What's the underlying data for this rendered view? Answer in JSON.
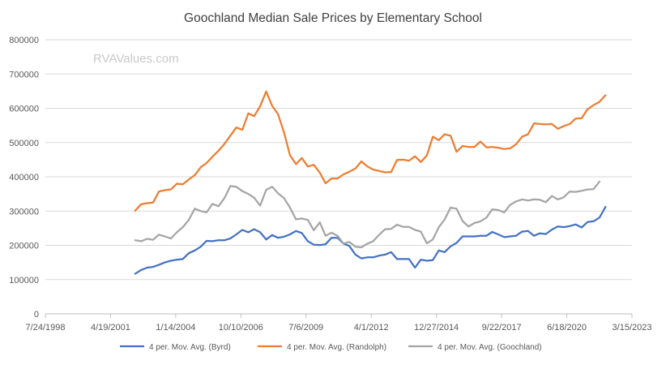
{
  "chart_data": {
    "type": "line",
    "title": "Goochland Median Sale Prices by Elementary School",
    "watermark": "RVAValues.com",
    "xlabel": "",
    "ylabel": "",
    "y_ticks": [
      0,
      100000,
      200000,
      300000,
      400000,
      500000,
      600000,
      700000,
      800000
    ],
    "ylim": [
      0,
      800000
    ],
    "x_ticks": [
      "7/24/1998",
      "4/19/2001",
      "1/14/2004",
      "10/10/2006",
      "7/6/2009",
      "4/1/2012",
      "12/27/2014",
      "9/22/2017",
      "6/18/2020",
      "3/15/2023"
    ],
    "x_tick_dates": [
      "1998-07-24",
      "2001-04-19",
      "2004-01-14",
      "2006-10-10",
      "2009-07-06",
      "2012-04-01",
      "2014-12-27",
      "2017-09-22",
      "2020-06-18",
      "2023-03-15"
    ],
    "grid": true,
    "legend_position": "bottom",
    "series": [
      {
        "name": "4 per. Mov. Avg. (Byrd)",
        "color": "#4472c4",
        "points": [
          [
            "2002-05-01",
            117000
          ],
          [
            "2002-08-01",
            128000
          ],
          [
            "2002-11-01",
            135000
          ],
          [
            "2003-02-01",
            137000
          ],
          [
            "2003-05-01",
            143000
          ],
          [
            "2003-08-01",
            150000
          ],
          [
            "2003-11-01",
            155000
          ],
          [
            "2004-02-01",
            158000
          ],
          [
            "2004-05-01",
            160000
          ],
          [
            "2004-08-01",
            177000
          ],
          [
            "2004-11-01",
            185000
          ],
          [
            "2005-02-01",
            196000
          ],
          [
            "2005-05-01",
            213000
          ],
          [
            "2005-08-01",
            212000
          ],
          [
            "2005-11-01",
            215000
          ],
          [
            "2006-02-01",
            215000
          ],
          [
            "2006-05-01",
            220000
          ],
          [
            "2006-08-01",
            232000
          ],
          [
            "2006-11-01",
            245000
          ],
          [
            "2007-02-01",
            238000
          ],
          [
            "2007-05-01",
            247000
          ],
          [
            "2007-08-01",
            238000
          ],
          [
            "2007-11-01",
            217000
          ],
          [
            "2008-02-01",
            230000
          ],
          [
            "2008-05-01",
            222000
          ],
          [
            "2008-08-01",
            225000
          ],
          [
            "2008-11-01",
            232000
          ],
          [
            "2009-02-01",
            242000
          ],
          [
            "2009-05-01",
            236000
          ],
          [
            "2009-08-01",
            212000
          ],
          [
            "2009-11-01",
            202000
          ],
          [
            "2010-02-01",
            201000
          ],
          [
            "2010-05-01",
            203000
          ],
          [
            "2010-08-01",
            222000
          ],
          [
            "2010-11-01",
            222000
          ],
          [
            "2011-02-01",
            205000
          ],
          [
            "2011-05-01",
            198000
          ],
          [
            "2011-08-01",
            173000
          ],
          [
            "2011-11-01",
            162000
          ],
          [
            "2012-02-01",
            165000
          ],
          [
            "2012-05-01",
            165000
          ],
          [
            "2012-08-01",
            170000
          ],
          [
            "2012-11-01",
            173000
          ],
          [
            "2013-02-01",
            180000
          ],
          [
            "2013-05-01",
            160000
          ],
          [
            "2013-08-01",
            160000
          ],
          [
            "2013-11-01",
            160000
          ],
          [
            "2014-02-01",
            135000
          ],
          [
            "2014-05-01",
            158000
          ],
          [
            "2014-08-01",
            155000
          ],
          [
            "2014-11-01",
            157000
          ],
          [
            "2015-02-01",
            185000
          ],
          [
            "2015-05-01",
            180000
          ],
          [
            "2015-08-01",
            197000
          ],
          [
            "2015-11-01",
            207000
          ],
          [
            "2016-02-01",
            226000
          ],
          [
            "2016-05-01",
            226000
          ],
          [
            "2016-08-01",
            226000
          ],
          [
            "2016-11-01",
            228000
          ],
          [
            "2017-02-01",
            228000
          ],
          [
            "2017-05-01",
            239000
          ],
          [
            "2017-08-01",
            232000
          ],
          [
            "2017-11-01",
            224000
          ],
          [
            "2018-02-01",
            226000
          ],
          [
            "2018-05-01",
            228000
          ],
          [
            "2018-08-01",
            240000
          ],
          [
            "2018-11-01",
            242000
          ],
          [
            "2019-02-01",
            228000
          ],
          [
            "2019-05-01",
            235000
          ],
          [
            "2019-08-01",
            233000
          ],
          [
            "2019-11-01",
            246000
          ],
          [
            "2020-02-01",
            255000
          ],
          [
            "2020-05-01",
            253000
          ],
          [
            "2020-08-01",
            256000
          ],
          [
            "2020-11-01",
            261000
          ],
          [
            "2021-02-01",
            252000
          ],
          [
            "2021-05-01",
            268000
          ],
          [
            "2021-08-01",
            270000
          ],
          [
            "2021-11-01",
            281000
          ],
          [
            "2022-02-01",
            312000
          ]
        ]
      },
      {
        "name": "4 per. Mov. Avg. (Randolph)",
        "color": "#ed7d31",
        "points": [
          [
            "2002-05-01",
            301000
          ],
          [
            "2002-08-01",
            320000
          ],
          [
            "2002-11-01",
            323000
          ],
          [
            "2003-02-01",
            325000
          ],
          [
            "2003-05-01",
            357000
          ],
          [
            "2003-08-01",
            361000
          ],
          [
            "2003-11-01",
            363000
          ],
          [
            "2004-02-01",
            380000
          ],
          [
            "2004-05-01",
            378000
          ],
          [
            "2004-08-01",
            392000
          ],
          [
            "2004-11-01",
            405000
          ],
          [
            "2005-02-01",
            428000
          ],
          [
            "2005-05-01",
            440000
          ],
          [
            "2005-08-01",
            459000
          ],
          [
            "2005-11-01",
            476000
          ],
          [
            "2006-02-01",
            496000
          ],
          [
            "2006-05-01",
            520000
          ],
          [
            "2006-08-01",
            544000
          ],
          [
            "2006-11-01",
            537000
          ],
          [
            "2007-02-01",
            585000
          ],
          [
            "2007-05-01",
            577000
          ],
          [
            "2007-08-01",
            606000
          ],
          [
            "2007-11-01",
            649000
          ],
          [
            "2008-02-01",
            607000
          ],
          [
            "2008-05-01",
            583000
          ],
          [
            "2008-08-01",
            530000
          ],
          [
            "2008-11-01",
            463000
          ],
          [
            "2009-02-01",
            437000
          ],
          [
            "2009-05-01",
            455000
          ],
          [
            "2009-08-01",
            430000
          ],
          [
            "2009-11-01",
            435000
          ],
          [
            "2010-02-01",
            412000
          ],
          [
            "2010-05-01",
            381000
          ],
          [
            "2010-08-01",
            395000
          ],
          [
            "2010-11-01",
            395000
          ],
          [
            "2011-02-01",
            407000
          ],
          [
            "2011-05-01",
            415000
          ],
          [
            "2011-08-01",
            424000
          ],
          [
            "2011-11-01",
            445000
          ],
          [
            "2012-02-01",
            430000
          ],
          [
            "2012-05-01",
            421000
          ],
          [
            "2012-08-01",
            417000
          ],
          [
            "2012-11-01",
            413000
          ],
          [
            "2013-02-01",
            414000
          ],
          [
            "2013-05-01",
            449000
          ],
          [
            "2013-08-01",
            450000
          ],
          [
            "2013-11-01",
            447000
          ],
          [
            "2014-02-01",
            460000
          ],
          [
            "2014-05-01",
            443000
          ],
          [
            "2014-08-01",
            462000
          ],
          [
            "2014-11-01",
            517000
          ],
          [
            "2015-02-01",
            507000
          ],
          [
            "2015-05-01",
            524000
          ],
          [
            "2015-08-01",
            520000
          ],
          [
            "2015-11-01",
            473000
          ],
          [
            "2016-02-01",
            490000
          ],
          [
            "2016-05-01",
            487000
          ],
          [
            "2016-08-01",
            487000
          ],
          [
            "2016-11-01",
            503000
          ],
          [
            "2017-02-01",
            486000
          ],
          [
            "2017-05-01",
            487000
          ],
          [
            "2017-08-01",
            485000
          ],
          [
            "2017-11-01",
            481000
          ],
          [
            "2018-02-01",
            483000
          ],
          [
            "2018-05-01",
            495000
          ],
          [
            "2018-08-01",
            517000
          ],
          [
            "2018-11-01",
            524000
          ],
          [
            "2019-02-01",
            556000
          ],
          [
            "2019-05-01",
            554000
          ],
          [
            "2019-08-01",
            553000
          ],
          [
            "2019-11-01",
            554000
          ],
          [
            "2020-02-01",
            540000
          ],
          [
            "2020-05-01",
            548000
          ],
          [
            "2020-08-01",
            554000
          ],
          [
            "2020-11-01",
            570000
          ],
          [
            "2021-02-01",
            571000
          ],
          [
            "2021-05-01",
            597000
          ],
          [
            "2021-08-01",
            609000
          ],
          [
            "2021-11-01",
            619000
          ],
          [
            "2022-02-01",
            638000
          ]
        ]
      },
      {
        "name": "4 per. Mov. Avg. (Goochland)",
        "color": "#a5a5a5",
        "points": [
          [
            "2002-05-01",
            215000
          ],
          [
            "2002-08-01",
            212000
          ],
          [
            "2002-11-01",
            219000
          ],
          [
            "2003-02-01",
            216000
          ],
          [
            "2003-05-01",
            231000
          ],
          [
            "2003-08-01",
            226000
          ],
          [
            "2003-11-01",
            220000
          ],
          [
            "2004-02-01",
            238000
          ],
          [
            "2004-05-01",
            253000
          ],
          [
            "2004-08-01",
            274000
          ],
          [
            "2004-11-01",
            307000
          ],
          [
            "2005-02-01",
            300000
          ],
          [
            "2005-05-01",
            296000
          ],
          [
            "2005-08-01",
            321000
          ],
          [
            "2005-11-01",
            314000
          ],
          [
            "2006-02-01",
            338000
          ],
          [
            "2006-05-01",
            373000
          ],
          [
            "2006-08-01",
            371000
          ],
          [
            "2006-11-01",
            358000
          ],
          [
            "2007-02-01",
            350000
          ],
          [
            "2007-05-01",
            339000
          ],
          [
            "2007-08-01",
            316000
          ],
          [
            "2007-11-01",
            362000
          ],
          [
            "2008-02-01",
            371000
          ],
          [
            "2008-05-01",
            352000
          ],
          [
            "2008-08-01",
            338000
          ],
          [
            "2008-11-01",
            310000
          ],
          [
            "2009-02-01",
            276000
          ],
          [
            "2009-05-01",
            278000
          ],
          [
            "2009-08-01",
            274000
          ],
          [
            "2009-11-01",
            244000
          ],
          [
            "2010-02-01",
            267000
          ],
          [
            "2010-05-01",
            228000
          ],
          [
            "2010-08-01",
            237000
          ],
          [
            "2010-11-01",
            228000
          ],
          [
            "2011-02-01",
            205000
          ],
          [
            "2011-05-01",
            210000
          ],
          [
            "2011-08-01",
            196000
          ],
          [
            "2011-11-01",
            194000
          ],
          [
            "2012-02-01",
            205000
          ],
          [
            "2012-05-01",
            212000
          ],
          [
            "2012-08-01",
            231000
          ],
          [
            "2012-11-01",
            247000
          ],
          [
            "2013-02-01",
            248000
          ],
          [
            "2013-05-01",
            260000
          ],
          [
            "2013-08-01",
            254000
          ],
          [
            "2013-11-01",
            254000
          ],
          [
            "2014-02-01",
            245000
          ],
          [
            "2014-05-01",
            240000
          ],
          [
            "2014-08-01",
            206000
          ],
          [
            "2014-11-01",
            217000
          ],
          [
            "2015-02-01",
            253000
          ],
          [
            "2015-05-01",
            275000
          ],
          [
            "2015-08-01",
            310000
          ],
          [
            "2015-11-01",
            307000
          ],
          [
            "2016-02-01",
            271000
          ],
          [
            "2016-05-01",
            255000
          ],
          [
            "2016-08-01",
            265000
          ],
          [
            "2016-11-01",
            270000
          ],
          [
            "2017-02-01",
            281000
          ],
          [
            "2017-05-01",
            305000
          ],
          [
            "2017-08-01",
            303000
          ],
          [
            "2017-11-01",
            296000
          ],
          [
            "2018-02-01",
            318000
          ],
          [
            "2018-05-01",
            328000
          ],
          [
            "2018-08-01",
            334000
          ],
          [
            "2018-11-01",
            331000
          ],
          [
            "2019-02-01",
            334000
          ],
          [
            "2019-05-01",
            333000
          ],
          [
            "2019-08-01",
            326000
          ],
          [
            "2019-11-01",
            344000
          ],
          [
            "2020-02-01",
            334000
          ],
          [
            "2020-05-01",
            340000
          ],
          [
            "2020-08-01",
            357000
          ],
          [
            "2020-11-01",
            356000
          ],
          [
            "2021-02-01",
            359000
          ],
          [
            "2021-05-01",
            363000
          ],
          [
            "2021-08-01",
            364000
          ],
          [
            "2021-11-01",
            386000
          ]
        ]
      }
    ]
  }
}
